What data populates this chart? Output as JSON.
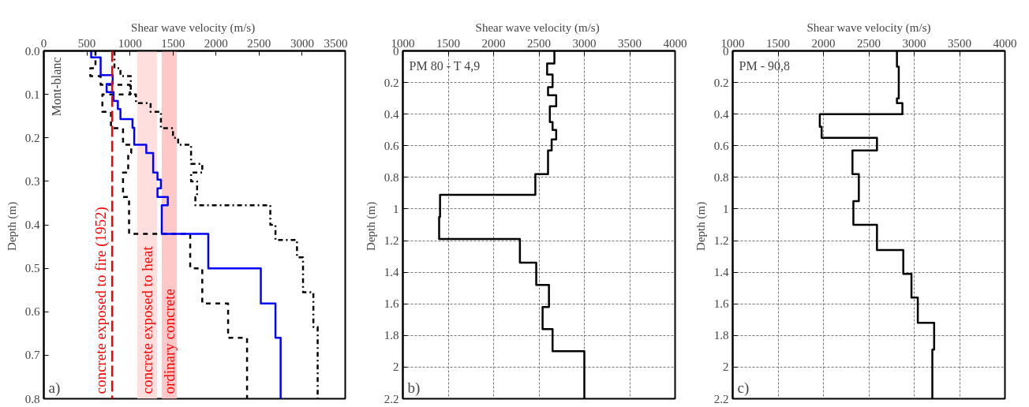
{
  "chart_data": [
    {
      "type": "line",
      "xlabel": "Shear wave velocity  (m/s)",
      "ylabel": "Depth  (m)",
      "xlim": [
        0,
        3500
      ],
      "xticks": [
        0,
        500,
        1000,
        1500,
        2000,
        2500,
        3000,
        3500
      ],
      "ylim": [
        0.8,
        0
      ],
      "yticks": [
        {
          "value": 0,
          "label": "0.0"
        },
        0.1,
        0.2,
        0.3,
        0.4,
        0.5,
        0.6,
        0.7,
        0.8
      ],
      "grid": false,
      "series": [
        {
          "color": "#000000",
          "line_style": "dashed",
          "x": [
            600,
            600,
            540,
            540,
            660,
            660,
            1000,
            1000,
            680,
            680,
            780,
            780,
            920,
            920,
            1015,
            1015,
            980,
            980,
            920,
            920,
            990,
            990,
            1700,
            1700,
            1840,
            1840,
            2140,
            2140,
            2360,
            2360
          ],
          "values": [
            0,
            0.04,
            0.04,
            0.058,
            0.058,
            0.078,
            0.078,
            0.1,
            0.1,
            0.14,
            0.14,
            0.178,
            0.178,
            0.216,
            0.216,
            0.235,
            0.235,
            0.28,
            0.28,
            0.336,
            0.336,
            0.421,
            0.421,
            0.5,
            0.5,
            0.581,
            0.581,
            0.66,
            0.66,
            0.8
          ]
        },
        {
          "color": "#000000",
          "line_style": "dashdot",
          "x": [
            820,
            820,
            890,
            890,
            1010,
            1010,
            1070,
            1070,
            1240,
            1240,
            1360,
            1360,
            1500,
            1500,
            1560,
            1560,
            1710,
            1710,
            1840,
            1840,
            1710,
            1710,
            1780,
            1780,
            1760,
            1760,
            2630,
            2630,
            2690,
            2690,
            2940,
            2940,
            3010,
            3010,
            3130,
            3130,
            3180,
            3180
          ],
          "values": [
            0,
            0.04,
            0.04,
            0.058,
            0.058,
            0.1,
            0.1,
            0.12,
            0.12,
            0.14,
            0.14,
            0.178,
            0.178,
            0.2,
            0.2,
            0.216,
            0.216,
            0.26,
            0.26,
            0.28,
            0.28,
            0.3,
            0.3,
            0.336,
            0.336,
            0.355,
            0.355,
            0.4,
            0.4,
            0.435,
            0.435,
            0.475,
            0.475,
            0.555,
            0.555,
            0.635,
            0.635,
            0.8
          ]
        },
        {
          "color": "#0000ff",
          "line_style": "solid",
          "x": [
            550,
            550,
            660,
            660,
            800,
            800,
            730,
            730,
            810,
            810,
            860,
            860,
            890,
            890,
            1030,
            1030,
            1050,
            1050,
            1190,
            1190,
            1270,
            1270,
            1320,
            1320,
            1360,
            1360,
            1320,
            1320,
            1440,
            1440,
            1370,
            1370,
            1910,
            1910,
            2520,
            2520,
            2690,
            2690,
            2750,
            2750
          ],
          "values": [
            0,
            0.015,
            0.015,
            0.056,
            0.056,
            0.076,
            0.076,
            0.095,
            0.095,
            0.115,
            0.115,
            0.134,
            0.134,
            0.157,
            0.157,
            0.177,
            0.177,
            0.216,
            0.216,
            0.235,
            0.235,
            0.28,
            0.28,
            0.296,
            0.296,
            0.316,
            0.316,
            0.336,
            0.336,
            0.355,
            0.355,
            0.421,
            0.421,
            0.5,
            0.5,
            0.581,
            0.581,
            0.66,
            0.66,
            0.8
          ]
        }
      ],
      "ref_lines": [
        {
          "axis": "x",
          "value": 795,
          "label": "concrete exposed to fire  (1952)",
          "color": "#ff0000",
          "line_style": "dashed"
        }
      ],
      "bands": [
        {
          "axis": "x",
          "from": 1085,
          "to": 1315,
          "label": "concrete exposed to heat",
          "color": "#ffdede"
        },
        {
          "axis": "x",
          "from": 1370,
          "to": 1545,
          "label": "ordinary concrete",
          "color": "#ffc8c8"
        }
      ],
      "annotations": [
        "Mont-blanc",
        "a)"
      ]
    },
    {
      "type": "line",
      "xlabel": "Shear wave velocity  (m/s)",
      "ylabel": "Depth  (m)",
      "xlim": [
        1000,
        4000
      ],
      "xticks": [
        1000,
        1500,
        2000,
        2500,
        3000,
        3500,
        4000
      ],
      "ylim": [
        2.2,
        0
      ],
      "yticks": [
        0,
        0.2,
        0.4,
        0.6,
        0.8,
        1,
        1.2,
        1.4,
        1.6,
        1.8,
        2,
        2.2
      ],
      "grid": true,
      "series": [
        {
          "color": "#000000",
          "line_style": "solid",
          "x": [
            2670,
            2670,
            2590,
            2590,
            2650,
            2650,
            2600,
            2600,
            2690,
            2690,
            2620,
            2620,
            2650,
            2650,
            2690,
            2690,
            2640,
            2640,
            2600,
            2600,
            2460,
            2460,
            1410,
            1410,
            1400,
            1400,
            2290,
            2290,
            2470,
            2470,
            2610,
            2610,
            2540,
            2540,
            2650,
            2650,
            3000,
            3000
          ],
          "values": [
            0,
            0.08,
            0.08,
            0.15,
            0.15,
            0.23,
            0.23,
            0.28,
            0.28,
            0.35,
            0.35,
            0.45,
            0.45,
            0.5,
            0.5,
            0.56,
            0.56,
            0.63,
            0.63,
            0.78,
            0.78,
            0.91,
            0.91,
            1.05,
            1.05,
            1.19,
            1.19,
            1.34,
            1.34,
            1.48,
            1.48,
            1.62,
            1.62,
            1.76,
            1.76,
            1.9,
            1.9,
            2.2
          ]
        }
      ],
      "annotations": [
        "PM 80 - T 4,9",
        "b)"
      ]
    },
    {
      "type": "line",
      "xlabel": "Shear wave velocity (m/s)",
      "ylabel": "Depth  (m)",
      "xlim": [
        1000,
        4000
      ],
      "xticks": [
        1000,
        1500,
        2000,
        2500,
        3000,
        3500,
        4000
      ],
      "ylim": [
        2.2,
        0
      ],
      "yticks": [
        0,
        0.2,
        0.4,
        0.6,
        0.8,
        1,
        1.2,
        1.4,
        1.6,
        1.8,
        2,
        2.2
      ],
      "grid": true,
      "series": [
        {
          "color": "#000000",
          "line_style": "solid",
          "x": [
            2810,
            2810,
            2830,
            2830,
            2810,
            2810,
            2870,
            2870,
            1960,
            1960,
            1980,
            1980,
            2590,
            2590,
            2320,
            2320,
            2390,
            2390,
            2330,
            2330,
            2590,
            2590,
            2880,
            2880,
            2970,
            2970,
            3040,
            3040,
            3220,
            3220,
            3200,
            3200
          ],
          "values": [
            0,
            0.1,
            0.1,
            0.3,
            0.3,
            0.33,
            0.33,
            0.4,
            0.4,
            0.48,
            0.48,
            0.55,
            0.55,
            0.63,
            0.63,
            0.78,
            0.78,
            0.95,
            0.95,
            1.1,
            1.1,
            1.26,
            1.26,
            1.41,
            1.41,
            1.56,
            1.56,
            1.72,
            1.72,
            1.89,
            1.89,
            2.2
          ]
        }
      ],
      "annotations": [
        "PM - 90,8",
        "c)"
      ]
    }
  ]
}
